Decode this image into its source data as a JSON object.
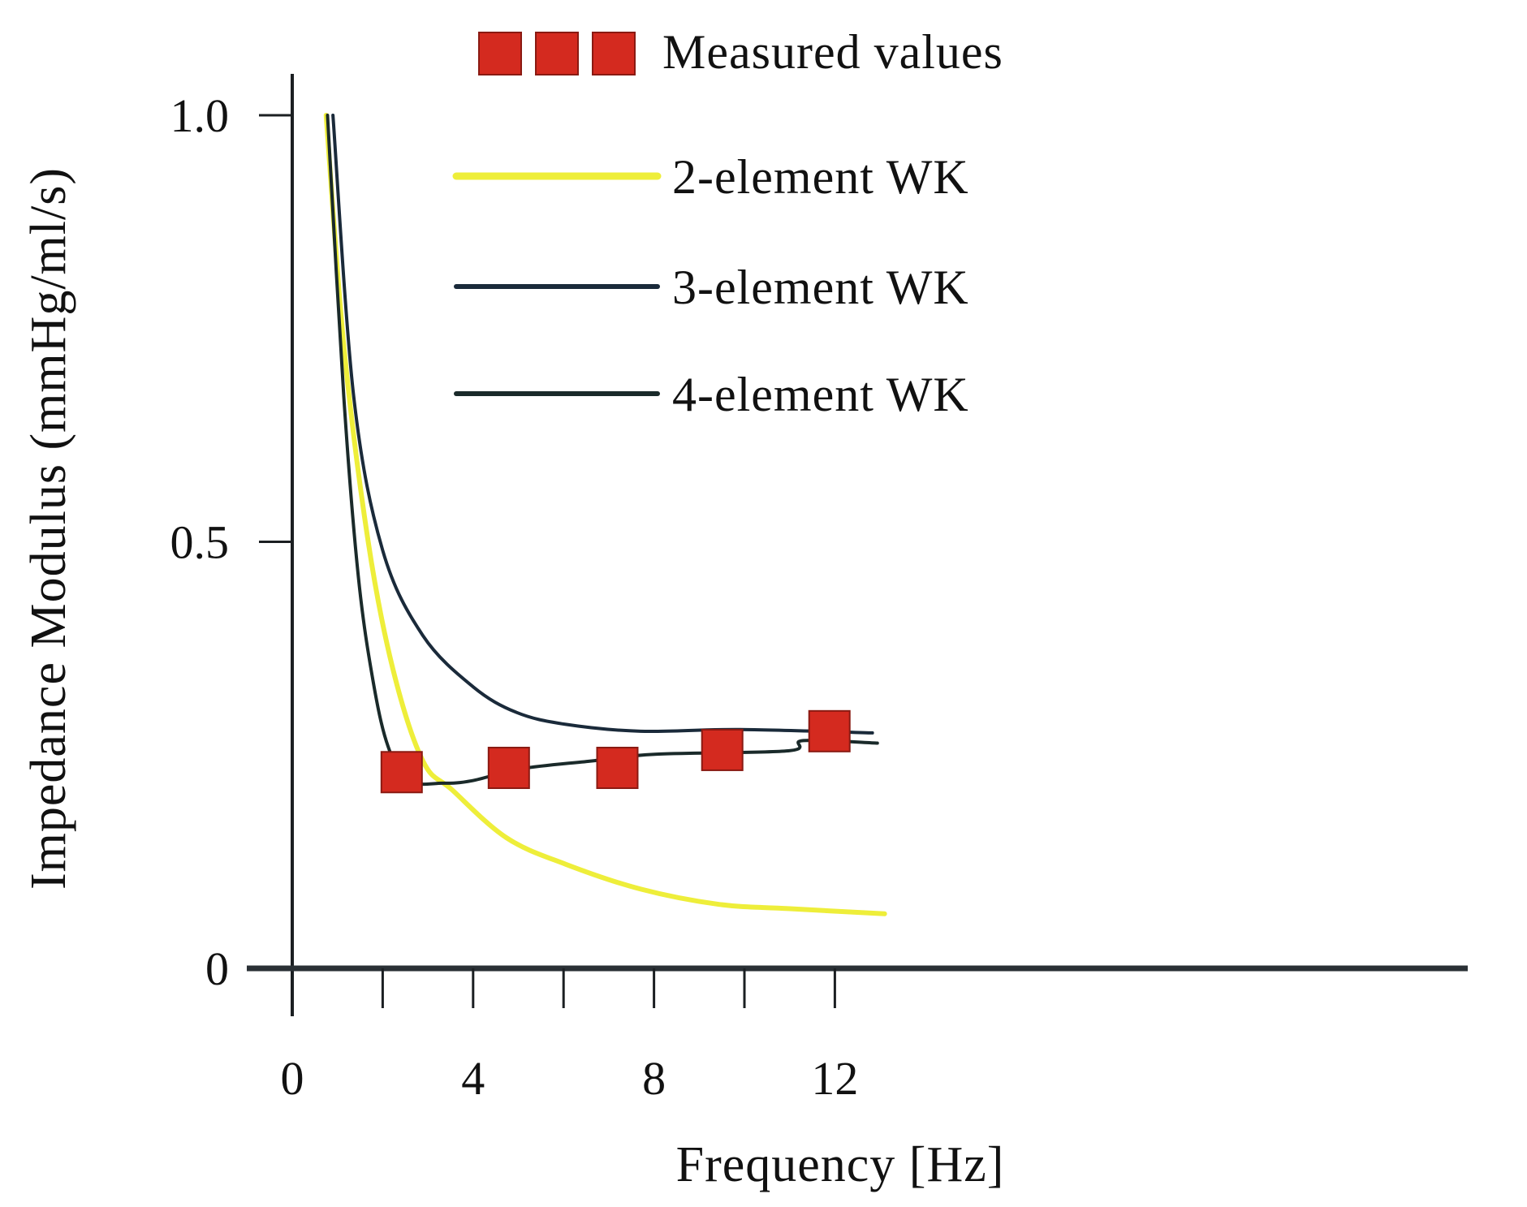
{
  "chart_data": {
    "type": "line",
    "xlabel": "Frequency [Hz]",
    "ylabel": "Impedance Modulus (mmHg/ml/s)",
    "xlim": [
      0,
      13.2
    ],
    "ylim": [
      0,
      1.0
    ],
    "x_ticks": [
      0,
      2,
      4,
      6,
      8,
      10,
      12
    ],
    "x_tick_labels": [
      "0",
      "4",
      "8",
      "12"
    ],
    "x_tick_label_values": [
      0,
      4,
      8,
      12
    ],
    "y_ticks": [
      0,
      0.5,
      1.0
    ],
    "y_tick_labels": [
      "0",
      "0.5",
      "1.0"
    ],
    "grid": false,
    "legend_position": "top",
    "series": [
      {
        "name": "Measured values",
        "kind": "markers",
        "marker": "square",
        "color": "#d42a1f",
        "x": [
          2.42,
          4.79,
          7.19,
          9.51,
          11.88
        ],
        "y": [
          0.23,
          0.235,
          0.235,
          0.256,
          0.278
        ]
      },
      {
        "name": "2-element WK",
        "kind": "line",
        "color": "#eeee3a",
        "x": [
          0.75,
          1.14,
          1.68,
          2.23,
          2.89,
          3.54,
          4.74,
          6.05,
          7.7,
          9.44,
          10.97,
          13.1
        ],
        "y": [
          1.0,
          0.73,
          0.5,
          0.35,
          0.243,
          0.209,
          0.153,
          0.122,
          0.093,
          0.075,
          0.07,
          0.064
        ]
      },
      {
        "name": "3-element WK",
        "kind": "line",
        "color": "#1a2a3a",
        "x": [
          0.9,
          1.36,
          2.0,
          2.89,
          4.0,
          4.96,
          6.05,
          7.7,
          9.9,
          12.83
        ],
        "y": [
          1.0,
          0.67,
          0.49,
          0.39,
          0.33,
          0.3,
          0.286,
          0.278,
          0.28,
          0.276
        ]
      },
      {
        "name": "4-element WK",
        "kind": "line",
        "color": "#1a2a2a",
        "x": [
          0.78,
          1.14,
          1.46,
          1.79,
          2.12,
          2.56,
          3.32,
          3.98,
          5.07,
          6.6,
          8.02,
          10.97,
          11.3,
          12.94
        ],
        "y": [
          1.0,
          0.67,
          0.46,
          0.336,
          0.26,
          0.22,
          0.217,
          0.22,
          0.234,
          0.243,
          0.251,
          0.255,
          0.267,
          0.264
        ]
      }
    ]
  }
}
